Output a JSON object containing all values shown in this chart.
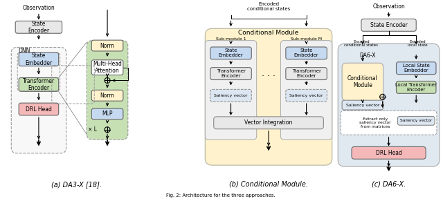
{
  "fig_width": 6.4,
  "fig_height": 2.91,
  "dpi": 100,
  "bg_color": "#ffffff",
  "subfig_labels": [
    "(a) DA3-X [18].",
    "(b) Conditional Module.",
    "(c) DA6-X."
  ],
  "colors": {
    "gray_box": "#e8e8e8",
    "blue_box": "#c5d9f1",
    "pink_box": "#f4b8b8",
    "green_bg": "#c6e0b4",
    "yellow_bg": "#fff2cc",
    "saliency_bg": "#dce6f1",
    "da6_bg": "#e0e8f0",
    "white": "#ffffff"
  }
}
